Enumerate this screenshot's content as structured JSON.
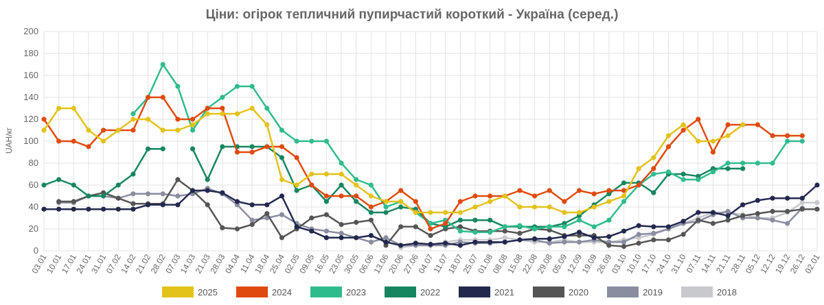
{
  "chart_data": {
    "type": "line",
    "title": "Ціни: огірок тепличний пупирчастий короткий - Україна (серед.)",
    "ylabel": "UAH/кг",
    "xlabel": "",
    "ylim": [
      0,
      200
    ],
    "yticks": [
      0,
      20,
      40,
      60,
      80,
      100,
      120,
      140,
      160,
      180,
      200
    ],
    "grid": true,
    "legend_position": "bottom",
    "x": [
      "03.01",
      "10.01",
      "17.01",
      "24.01",
      "31.01",
      "07.02",
      "14.02",
      "21.02",
      "28.02",
      "07.03",
      "14.03",
      "21.03",
      "28.03",
      "04.04",
      "11.04",
      "18.04",
      "25.04",
      "02.05",
      "09.05",
      "16.05",
      "23.05",
      "30.05",
      "06.06",
      "13.06",
      "20.06",
      "27.06",
      "04.07",
      "11.07",
      "18.07",
      "25.07",
      "01.08",
      "08.08",
      "15.08",
      "22.08",
      "29.08",
      "05.09",
      "12.09",
      "19.09",
      "26.09",
      "03.10",
      "10.10",
      "17.10",
      "24.10",
      "31.10",
      "07.11",
      "14.11",
      "21.11",
      "28.11",
      "05.12",
      "12.12",
      "19.12",
      "26.12",
      "02.01"
    ],
    "series": [
      {
        "name": "2025",
        "color": "#e3c21a",
        "values": [
          110,
          130,
          130,
          110,
          100,
          110,
          120,
          120,
          110,
          110,
          115,
          125,
          125,
          125,
          130,
          115,
          65,
          60,
          70,
          70,
          70,
          60,
          50,
          45,
          45,
          35,
          35,
          35,
          35,
          40,
          45,
          50,
          40,
          40,
          40,
          35,
          35,
          40,
          45,
          50,
          75,
          85,
          105,
          115,
          100,
          100,
          105,
          115,
          null,
          null,
          null,
          null,
          null
        ]
      },
      {
        "name": "2024",
        "color": "#e04a0e",
        "values": [
          120,
          100,
          100,
          95,
          110,
          110,
          110,
          140,
          140,
          120,
          120,
          130,
          130,
          90,
          90,
          95,
          95,
          85,
          60,
          50,
          50,
          50,
          40,
          45,
          55,
          45,
          20,
          25,
          45,
          50,
          50,
          50,
          55,
          50,
          55,
          45,
          55,
          52,
          55,
          55,
          60,
          75,
          95,
          110,
          120,
          90,
          115,
          115,
          115,
          105,
          105,
          105,
          null
        ]
      },
      {
        "name": "2023",
        "color": "#2fbc8c",
        "values": [
          null,
          null,
          null,
          null,
          null,
          null,
          125,
          140,
          170,
          150,
          110,
          130,
          140,
          150,
          150,
          130,
          110,
          100,
          100,
          100,
          80,
          65,
          60,
          40,
          45,
          35,
          25,
          28,
          18,
          17,
          17,
          22,
          23,
          20,
          22,
          22,
          28,
          22,
          28,
          45,
          60,
          70,
          72,
          65,
          65,
          72,
          80,
          80,
          80,
          80,
          100,
          100,
          null
        ]
      },
      {
        "name": "2022",
        "color": "#168660",
        "values": [
          60,
          65,
          60,
          50,
          50,
          60,
          70,
          93,
          93,
          null,
          93,
          65,
          95,
          95,
          95,
          95,
          85,
          55,
          60,
          45,
          60,
          45,
          35,
          35,
          40,
          38,
          25,
          22,
          28,
          28,
          28,
          22,
          22,
          22,
          22,
          25,
          32,
          42,
          52,
          62,
          62,
          53,
          70,
          70,
          68,
          75,
          75,
          75,
          null,
          null,
          null,
          null,
          null
        ]
      },
      {
        "name": "2021",
        "color": "#23284f",
        "values": [
          38,
          38,
          38,
          38,
          38,
          38,
          38,
          42,
          42,
          42,
          55,
          55,
          53,
          45,
          42,
          42,
          50,
          22,
          18,
          12,
          12,
          12,
          14,
          8,
          5,
          7,
          6,
          7,
          5,
          8,
          8,
          8,
          10,
          11,
          11,
          13,
          17,
          12,
          13,
          18,
          23,
          22,
          22,
          27,
          35,
          35,
          32,
          42,
          46,
          48,
          48,
          48,
          60
        ]
      },
      {
        "name": "2020",
        "color": "#555555",
        "values": [
          null,
          45,
          45,
          50,
          53,
          48,
          43,
          43,
          43,
          65,
          55,
          42,
          21,
          20,
          24,
          34,
          12,
          20,
          30,
          33,
          24,
          26,
          28,
          5,
          22,
          22,
          14,
          20,
          22,
          18,
          18,
          18,
          16,
          20,
          19,
          14,
          14,
          14,
          5,
          4,
          7,
          10,
          10,
          15,
          28,
          25,
          28,
          32,
          34,
          36,
          36,
          38,
          38
        ]
      },
      {
        "name": "2019",
        "color": "#8a8da0",
        "values": [
          null,
          44,
          44,
          50,
          50,
          48,
          52,
          52,
          52,
          50,
          52,
          57,
          52,
          42,
          28,
          30,
          33,
          25,
          20,
          18,
          16,
          12,
          8,
          12,
          5,
          5,
          5,
          5,
          8,
          7,
          7,
          8,
          10,
          10,
          7,
          8,
          8,
          10,
          8,
          8,
          15,
          16,
          20,
          25,
          27,
          33,
          36,
          30,
          30,
          28,
          25,
          39,
          null
        ]
      },
      {
        "name": "2018",
        "color": "#c8c9cc",
        "values": [
          null,
          null,
          null,
          null,
          null,
          null,
          null,
          null,
          null,
          null,
          null,
          null,
          null,
          null,
          null,
          null,
          null,
          null,
          null,
          null,
          null,
          null,
          null,
          null,
          3,
          5,
          5,
          8,
          10,
          10,
          10,
          12,
          10,
          8,
          8,
          10,
          8,
          8,
          8,
          10,
          12,
          15,
          20,
          25,
          30,
          35,
          35,
          33,
          30,
          30,
          35,
          44,
          44
        ]
      }
    ]
  }
}
